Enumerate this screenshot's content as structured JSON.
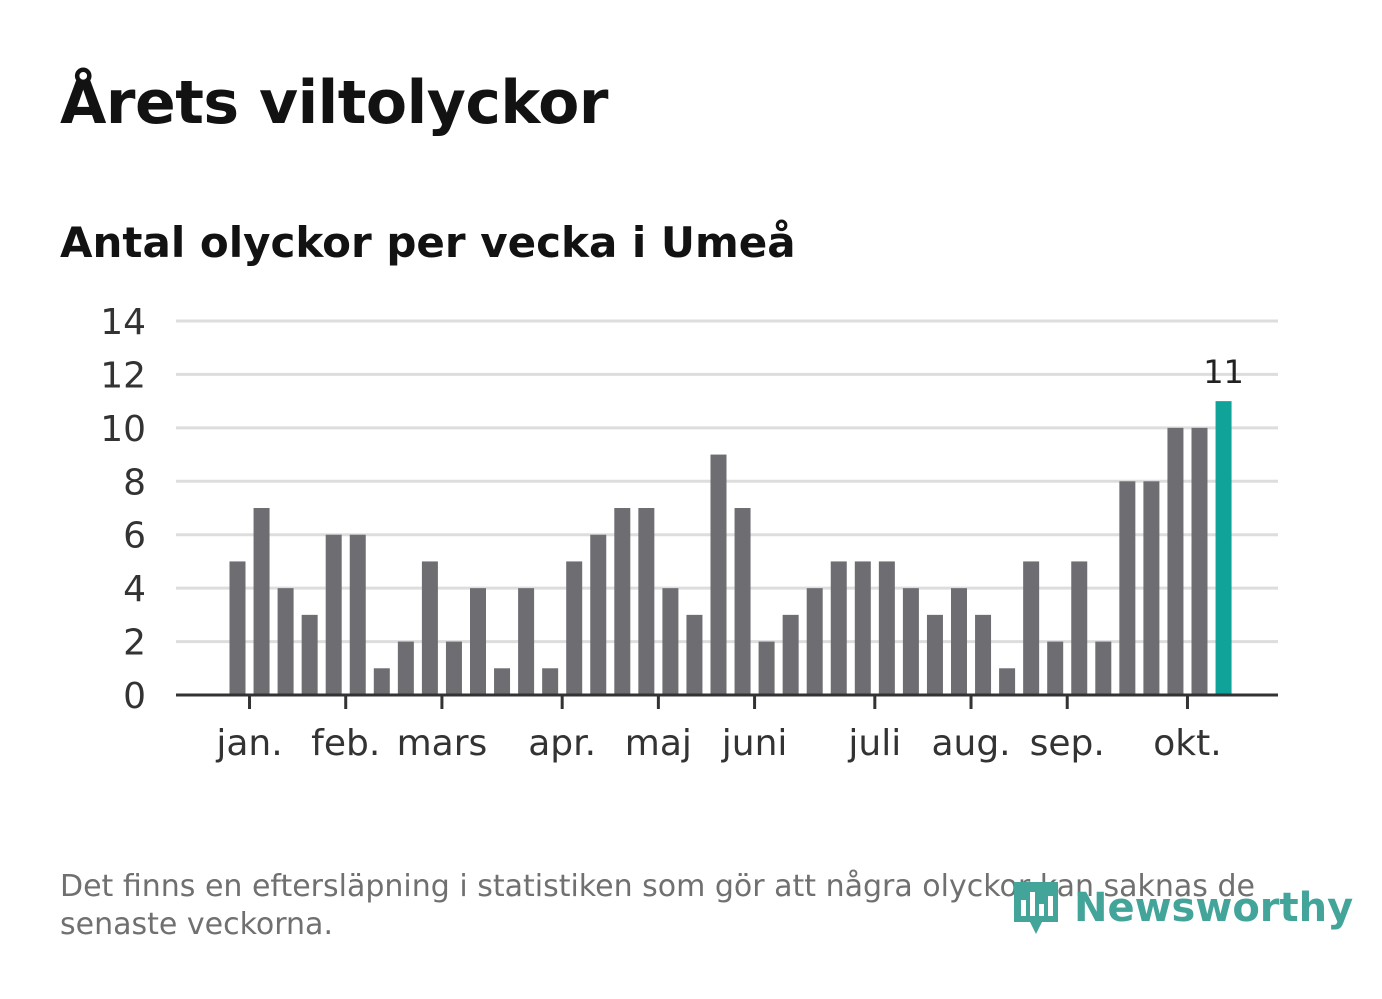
{
  "header": {
    "title": "Årets viltolyckor",
    "subtitle": "Antal olyckor per vecka i Umeå"
  },
  "colors": {
    "bar": "#6e6d72",
    "highlight": "#0fa399",
    "grid": "#dddddd",
    "axis": "#333333",
    "text": "#333333",
    "logo": "#43a49a"
  },
  "chart_data": {
    "type": "bar",
    "title": "Antal olyckor per vecka i Umeå",
    "xlabel": "",
    "ylabel": "",
    "ylim": [
      0,
      14
    ],
    "yticks": [
      0,
      2,
      4,
      6,
      8,
      10,
      12,
      14
    ],
    "grid": true,
    "month_labels": [
      {
        "label": "jan.",
        "week_index": 0.5
      },
      {
        "label": "feb.",
        "week_index": 4.5
      },
      {
        "label": "mars",
        "week_index": 8.5
      },
      {
        "label": "apr.",
        "week_index": 13.5
      },
      {
        "label": "maj",
        "week_index": 17.5
      },
      {
        "label": "juni",
        "week_index": 21.5
      },
      {
        "label": "juli",
        "week_index": 26.5
      },
      {
        "label": "aug.",
        "week_index": 30.5
      },
      {
        "label": "sep.",
        "week_index": 34.5
      },
      {
        "label": "okt.",
        "week_index": 39.5
      }
    ],
    "values": [
      5,
      7,
      4,
      3,
      6,
      6,
      1,
      2,
      5,
      2,
      4,
      1,
      4,
      1,
      5,
      6,
      7,
      7,
      4,
      3,
      9,
      7,
      2,
      3,
      4,
      5,
      5,
      5,
      4,
      3,
      4,
      3,
      1,
      5,
      2,
      5,
      2,
      8,
      8,
      10,
      10,
      11
    ],
    "highlight_index": 41,
    "highlight_label": "11"
  },
  "footer": {
    "note": "Det finns en eftersläpning i statistiken som gör att några olyckor kan saknas de senaste veckorna.",
    "logo_text": "Newsworthy",
    "logo_icon": "newsworthy-chart-icon"
  }
}
